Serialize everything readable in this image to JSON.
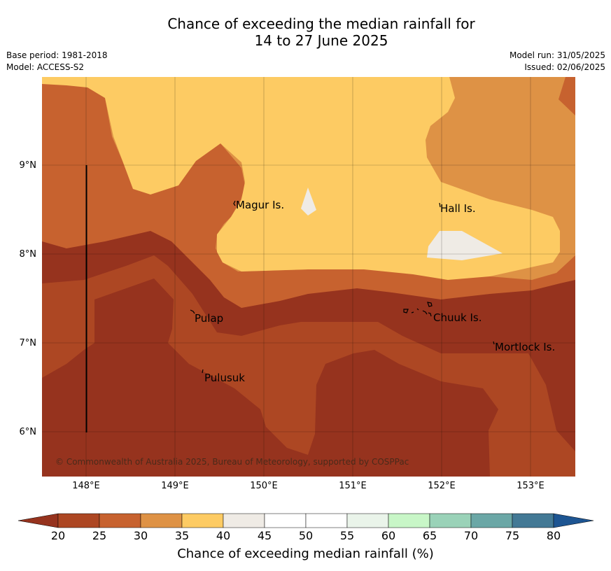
{
  "title_line1": "Chance of exceeding the median rainfall for",
  "title_line2": "14 to 27 June 2025",
  "base_period": "Base period: 1981-2018",
  "model": "Model: ACCESS-S2",
  "model_run": "Model run: 31/05/2025",
  "issued": "Issued: 02/06/2025",
  "map": {
    "y_ticks": [
      "9°N",
      "8°N",
      "7°N",
      "6°N"
    ],
    "x_ticks": [
      "148°E",
      "149°E",
      "150°E",
      "151°E",
      "152°E",
      "153°E"
    ],
    "places": [
      {
        "name": "Magur Is."
      },
      {
        "name": "Hall Is."
      },
      {
        "name": "Pulap"
      },
      {
        "name": "Chuuk Is."
      },
      {
        "name": "Mortlock Is."
      },
      {
        "name": "Pulusuk"
      }
    ],
    "copyright": "© Commonwealth of Australia 2025, Bureau of Meteorology, supported by COSPPac"
  },
  "colorbar": {
    "label": "Chance of exceeding median rainfall (%)",
    "ticks": [
      "20",
      "25",
      "30",
      "35",
      "40",
      "45",
      "50",
      "55",
      "60",
      "65",
      "70",
      "75",
      "80"
    ],
    "colors": [
      "#ad4723",
      "#c7622f",
      "#de9245",
      "#fdcb63",
      "#efebe5",
      "#ffffff",
      "#ffffff",
      "#eaf4ea",
      "#c8f6c7",
      "#9ad2b8",
      "#6ba7a6",
      "#437995"
    ],
    "under_color": "#96331e",
    "over_color": "#1d5592"
  }
}
